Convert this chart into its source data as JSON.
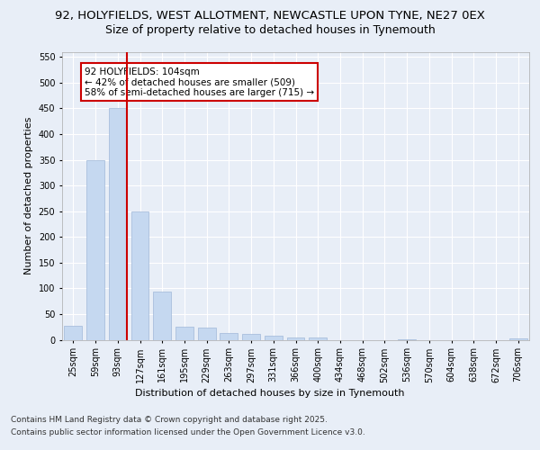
{
  "title_line1": "92, HOLYFIELDS, WEST ALLOTMENT, NEWCASTLE UPON TYNE, NE27 0EX",
  "title_line2": "Size of property relative to detached houses in Tynemouth",
  "xlabel": "Distribution of detached houses by size in Tynemouth",
  "ylabel": "Number of detached properties",
  "categories": [
    "25sqm",
    "59sqm",
    "93sqm",
    "127sqm",
    "161sqm",
    "195sqm",
    "229sqm",
    "263sqm",
    "297sqm",
    "331sqm",
    "366sqm",
    "400sqm",
    "434sqm",
    "468sqm",
    "502sqm",
    "536sqm",
    "570sqm",
    "604sqm",
    "638sqm",
    "672sqm",
    "706sqm"
  ],
  "values": [
    27,
    350,
    450,
    250,
    93,
    25,
    23,
    13,
    11,
    8,
    5,
    4,
    0,
    0,
    0,
    1,
    0,
    0,
    0,
    0,
    3
  ],
  "bar_color": "#c5d8f0",
  "bar_edge_color": "#a0b8d8",
  "highlight_index": 2,
  "highlight_line_color": "#cc0000",
  "annotation_text": "92 HOLYFIELDS: 104sqm\n← 42% of detached houses are smaller (509)\n58% of semi-detached houses are larger (715) →",
  "annotation_box_color": "#ffffff",
  "annotation_box_edge": "#cc0000",
  "ylim": [
    0,
    560
  ],
  "yticks": [
    0,
    50,
    100,
    150,
    200,
    250,
    300,
    350,
    400,
    450,
    500,
    550
  ],
  "bg_color": "#e8eef7",
  "plot_bg_color": "#e8eef7",
  "grid_color": "#ffffff",
  "footer_line1": "Contains HM Land Registry data © Crown copyright and database right 2025.",
  "footer_line2": "Contains public sector information licensed under the Open Government Licence v3.0.",
  "title_fontsize": 9.5,
  "subtitle_fontsize": 9,
  "axis_label_fontsize": 8,
  "tick_fontsize": 7,
  "footer_fontsize": 6.5,
  "annotation_fontsize": 7.5
}
